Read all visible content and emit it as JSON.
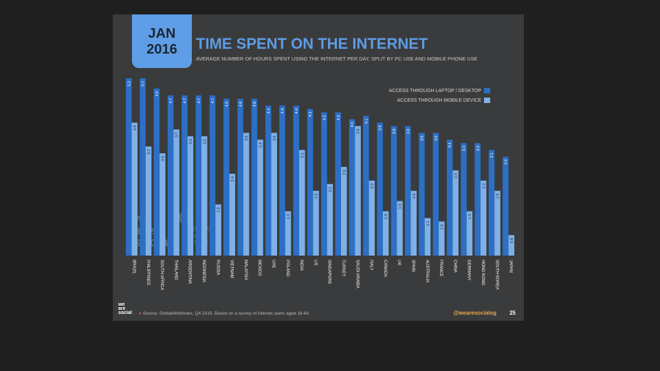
{
  "header": {
    "month": "JAN",
    "year": "2016",
    "title": "TIME SPENT ON THE INTERNET",
    "subtitle": "AVERAGE NUMBER OF HOURS SPENT USING THE INTERNET PER DAY, SPLIT BY PC USE AND MOBILE PHONE USE"
  },
  "legend": {
    "laptop": "ACCESS THROUGH LAPTOP / DESKTOP",
    "mobile": "ACCESS THROUGH MOBILE DEVICE"
  },
  "watermark": {
    "wearesocial_1": "we",
    "wearesocial_2": "are",
    "wearesocial_3": "social",
    "gwi_1": "global",
    "gwi_2": "web",
    "gwi_3": "index"
  },
  "footer": {
    "brand_1": "we",
    "brand_2": "are",
    "brand_3": "social",
    "source": "Source: GlobalWebIndex, Q4 2015. Based on a survey of internet users aged 16-64.",
    "handle": "@wearesocialsg",
    "page": "25"
  },
  "colors": {
    "laptop": "#2c6fc4",
    "mobile": "#7fb0e6",
    "label_text": "#ffffff"
  },
  "chart_data": {
    "type": "bar",
    "categories": [
      "BRAZIL",
      "PHILIPPINES",
      "SOUTH AFRICA",
      "THAILAND",
      "ARGENTINA",
      "INDONESIA",
      "RUSSIA",
      "VIETNAM",
      "MALAYSIA",
      "MEXICO",
      "UAE",
      "POLAND",
      "INDIA",
      "US",
      "SINGAPORE",
      "TURKEY",
      "SAUDI ARABIA",
      "ITALY",
      "CANADA",
      "UK",
      "SPAIN",
      "AUSTRALIA",
      "FRANCE",
      "CHINA",
      "GERMANY",
      "HONG KONG",
      "SOUTH KOREA",
      "JAPAN"
    ],
    "series": [
      {
        "name": "ACCESS THROUGH LAPTOP / DESKTOP",
        "values": [
          5.2,
          5.2,
          4.9,
          4.7,
          4.7,
          4.7,
          4.7,
          4.6,
          4.6,
          4.6,
          4.4,
          4.4,
          4.4,
          4.3,
          4.2,
          4.2,
          4.0,
          4.1,
          3.9,
          3.8,
          3.8,
          3.6,
          3.6,
          3.4,
          3.3,
          3.3,
          3.1,
          2.9
        ],
        "labels": [
          "5.2",
          "5.2",
          "4.9",
          "4.7",
          "4.7",
          "4.7",
          "4.7",
          "4.6",
          "4.6",
          "4.6",
          "4.4",
          "4.4",
          "4.4",
          "4.3",
          "4.2",
          "4.2",
          "4.0",
          "4.1",
          "3.9",
          "3.8",
          "3.8",
          "3.6",
          "3.6",
          "3.4",
          "3.3",
          "3.3",
          "3.1",
          "2.9"
        ]
      },
      {
        "name": "ACCESS THROUGH MOBILE DEVICE",
        "values": [
          3.9,
          3.2,
          3.0,
          3.7,
          3.5,
          3.5,
          1.5,
          2.4,
          3.6,
          3.4,
          3.6,
          1.3,
          3.1,
          1.9,
          2.1,
          2.6,
          3.8,
          2.2,
          1.3,
          1.6,
          1.9,
          1.1,
          1.0,
          2.5,
          1.3,
          2.2,
          1.9,
          0.6
        ],
        "labels": [
          "3.9",
          "3.2",
          "3.0",
          "3.7",
          "3.5",
          "3.5",
          "1.5",
          "2.4",
          "3.6",
          "3.4",
          "3.6",
          "1.3",
          "3.1",
          "1.9",
          "2.1",
          "2.6",
          "3.8",
          "2.2",
          "1.3",
          "1.6",
          "1.9",
          "1.1",
          "1.0",
          "2.5",
          "1.3",
          "2.2",
          "1.9",
          "0.6"
        ]
      }
    ],
    "title": "TIME SPENT ON THE INTERNET",
    "ylabel": "",
    "ylim": [
      0,
      5.2
    ]
  }
}
